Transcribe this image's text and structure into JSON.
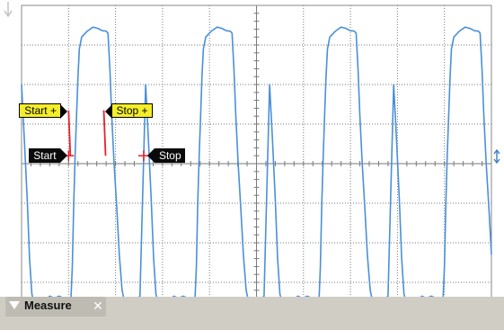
{
  "display": {
    "grid_divisions": {
      "x": 10,
      "y": 8
    },
    "minor_ticks_per_division": 5,
    "background_color": "#ffffff",
    "grid_color": "#7a7a7a",
    "frame_color": "#8a8a8a",
    "trace_color": "#4a90d9",
    "cursor_color": "#e8202a",
    "trace_levels": {
      "high": 3.25,
      "low": -3.3,
      "midline": 0.0
    }
  },
  "waveform": {
    "period_div": 2.64,
    "samples": [
      [
        0.0,
        2.0
      ],
      [
        0.06,
        0.6
      ],
      [
        0.12,
        -0.9
      ],
      [
        0.17,
        -2.4
      ],
      [
        0.22,
        -3.3
      ],
      [
        0.3,
        -3.65
      ],
      [
        0.4,
        -3.6
      ],
      [
        0.5,
        -3.45
      ],
      [
        0.6,
        -3.35
      ],
      [
        0.7,
        -3.4
      ],
      [
        0.8,
        -3.35
      ],
      [
        0.9,
        -3.4
      ],
      [
        1.0,
        -3.45
      ],
      [
        1.05,
        -3.45
      ],
      [
        1.08,
        -2.6
      ],
      [
        1.11,
        -1.0
      ],
      [
        1.14,
        0.2
      ],
      [
        1.17,
        1.2
      ],
      [
        1.2,
        2.2
      ],
      [
        1.23,
        2.9
      ],
      [
        1.28,
        3.2
      ],
      [
        1.4,
        3.35
      ],
      [
        1.52,
        3.45
      ],
      [
        1.62,
        3.42
      ],
      [
        1.72,
        3.36
      ],
      [
        1.8,
        3.35
      ],
      [
        1.84,
        3.3
      ],
      [
        1.88,
        2.4
      ],
      [
        1.92,
        1.2
      ],
      [
        1.97,
        0.0
      ],
      [
        2.03,
        -1.2
      ],
      [
        2.08,
        -2.3
      ],
      [
        2.14,
        -3.2
      ],
      [
        2.22,
        -3.65
      ],
      [
        2.32,
        -3.6
      ],
      [
        2.42,
        -3.45
      ],
      [
        2.52,
        -3.35
      ],
      [
        2.64,
        2.0
      ]
    ]
  },
  "markers": {
    "start_plus": {
      "label": "Start +",
      "x_div": 1.0,
      "y_top_div": 1.35,
      "y_bottom_div": 0.2
    },
    "stop_plus": {
      "label": "Stop +",
      "x_div": 1.75,
      "y_top_div": 1.35,
      "y_bottom_div": 0.2
    },
    "start": {
      "label": "Start",
      "x_div": 1.0,
      "y_div": 0.2
    },
    "stop": {
      "label": "Stop",
      "x_div": 2.6,
      "y_div": 0.2
    }
  },
  "side_indicators": {
    "top_left_arrow_icon": "arrow-down-icon",
    "right_edge_icon": "arrow-up-down-icon"
  },
  "measure_panel": {
    "tab_label": "Measure",
    "close_icon": "close-icon",
    "collapse_icon": "chevron-down-icon",
    "bar_color": "#cfcdc4"
  }
}
